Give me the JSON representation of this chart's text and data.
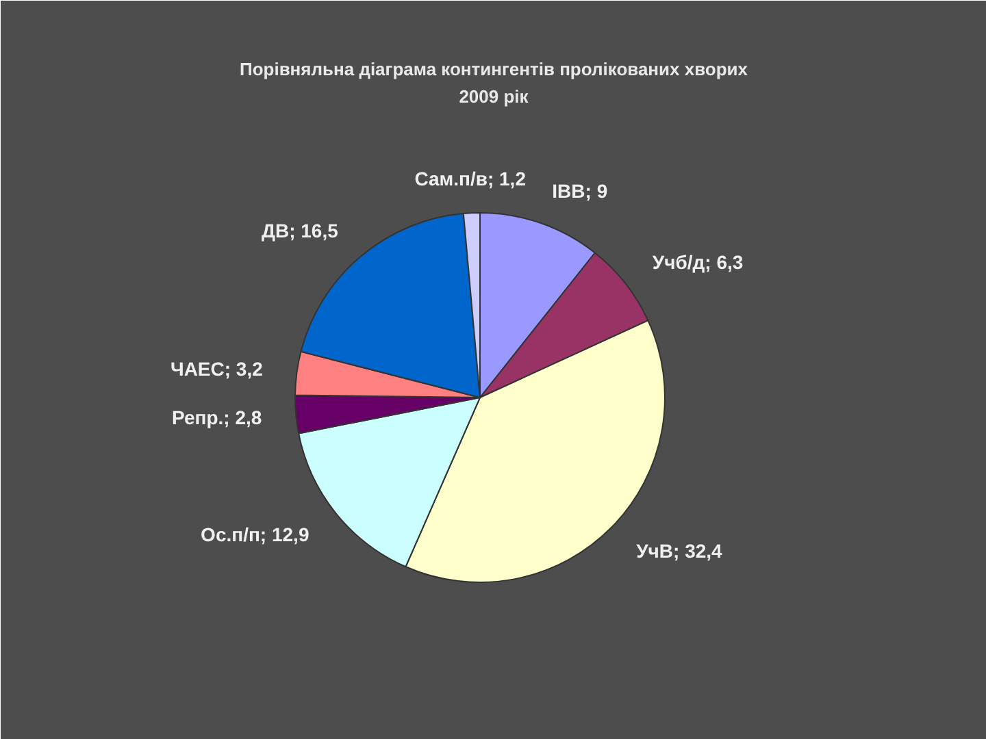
{
  "chart_data": {
    "type": "pie",
    "title": "Порівняльна діаграма контингентів пролікованих хворих",
    "subtitle": "2009 рік",
    "categories": [
      "ІВВ",
      "Учб/д",
      "УчВ",
      "Ос.п/п",
      "Репр.",
      "ЧАЕС",
      "ДВ",
      "Сам.п/в"
    ],
    "values": [
      9,
      6.3,
      32.4,
      12.9,
      2.8,
      3.2,
      16.5,
      1.2
    ],
    "value_labels": [
      "9",
      "6,3",
      "32,4",
      "12,9",
      "2,8",
      "3,2",
      "16,5",
      "1,2"
    ],
    "colors": [
      "#9999ff",
      "#993366",
      "#ffffcc",
      "#ccffff",
      "#660066",
      "#ff8080",
      "#0066cc",
      "#ccccff"
    ]
  }
}
